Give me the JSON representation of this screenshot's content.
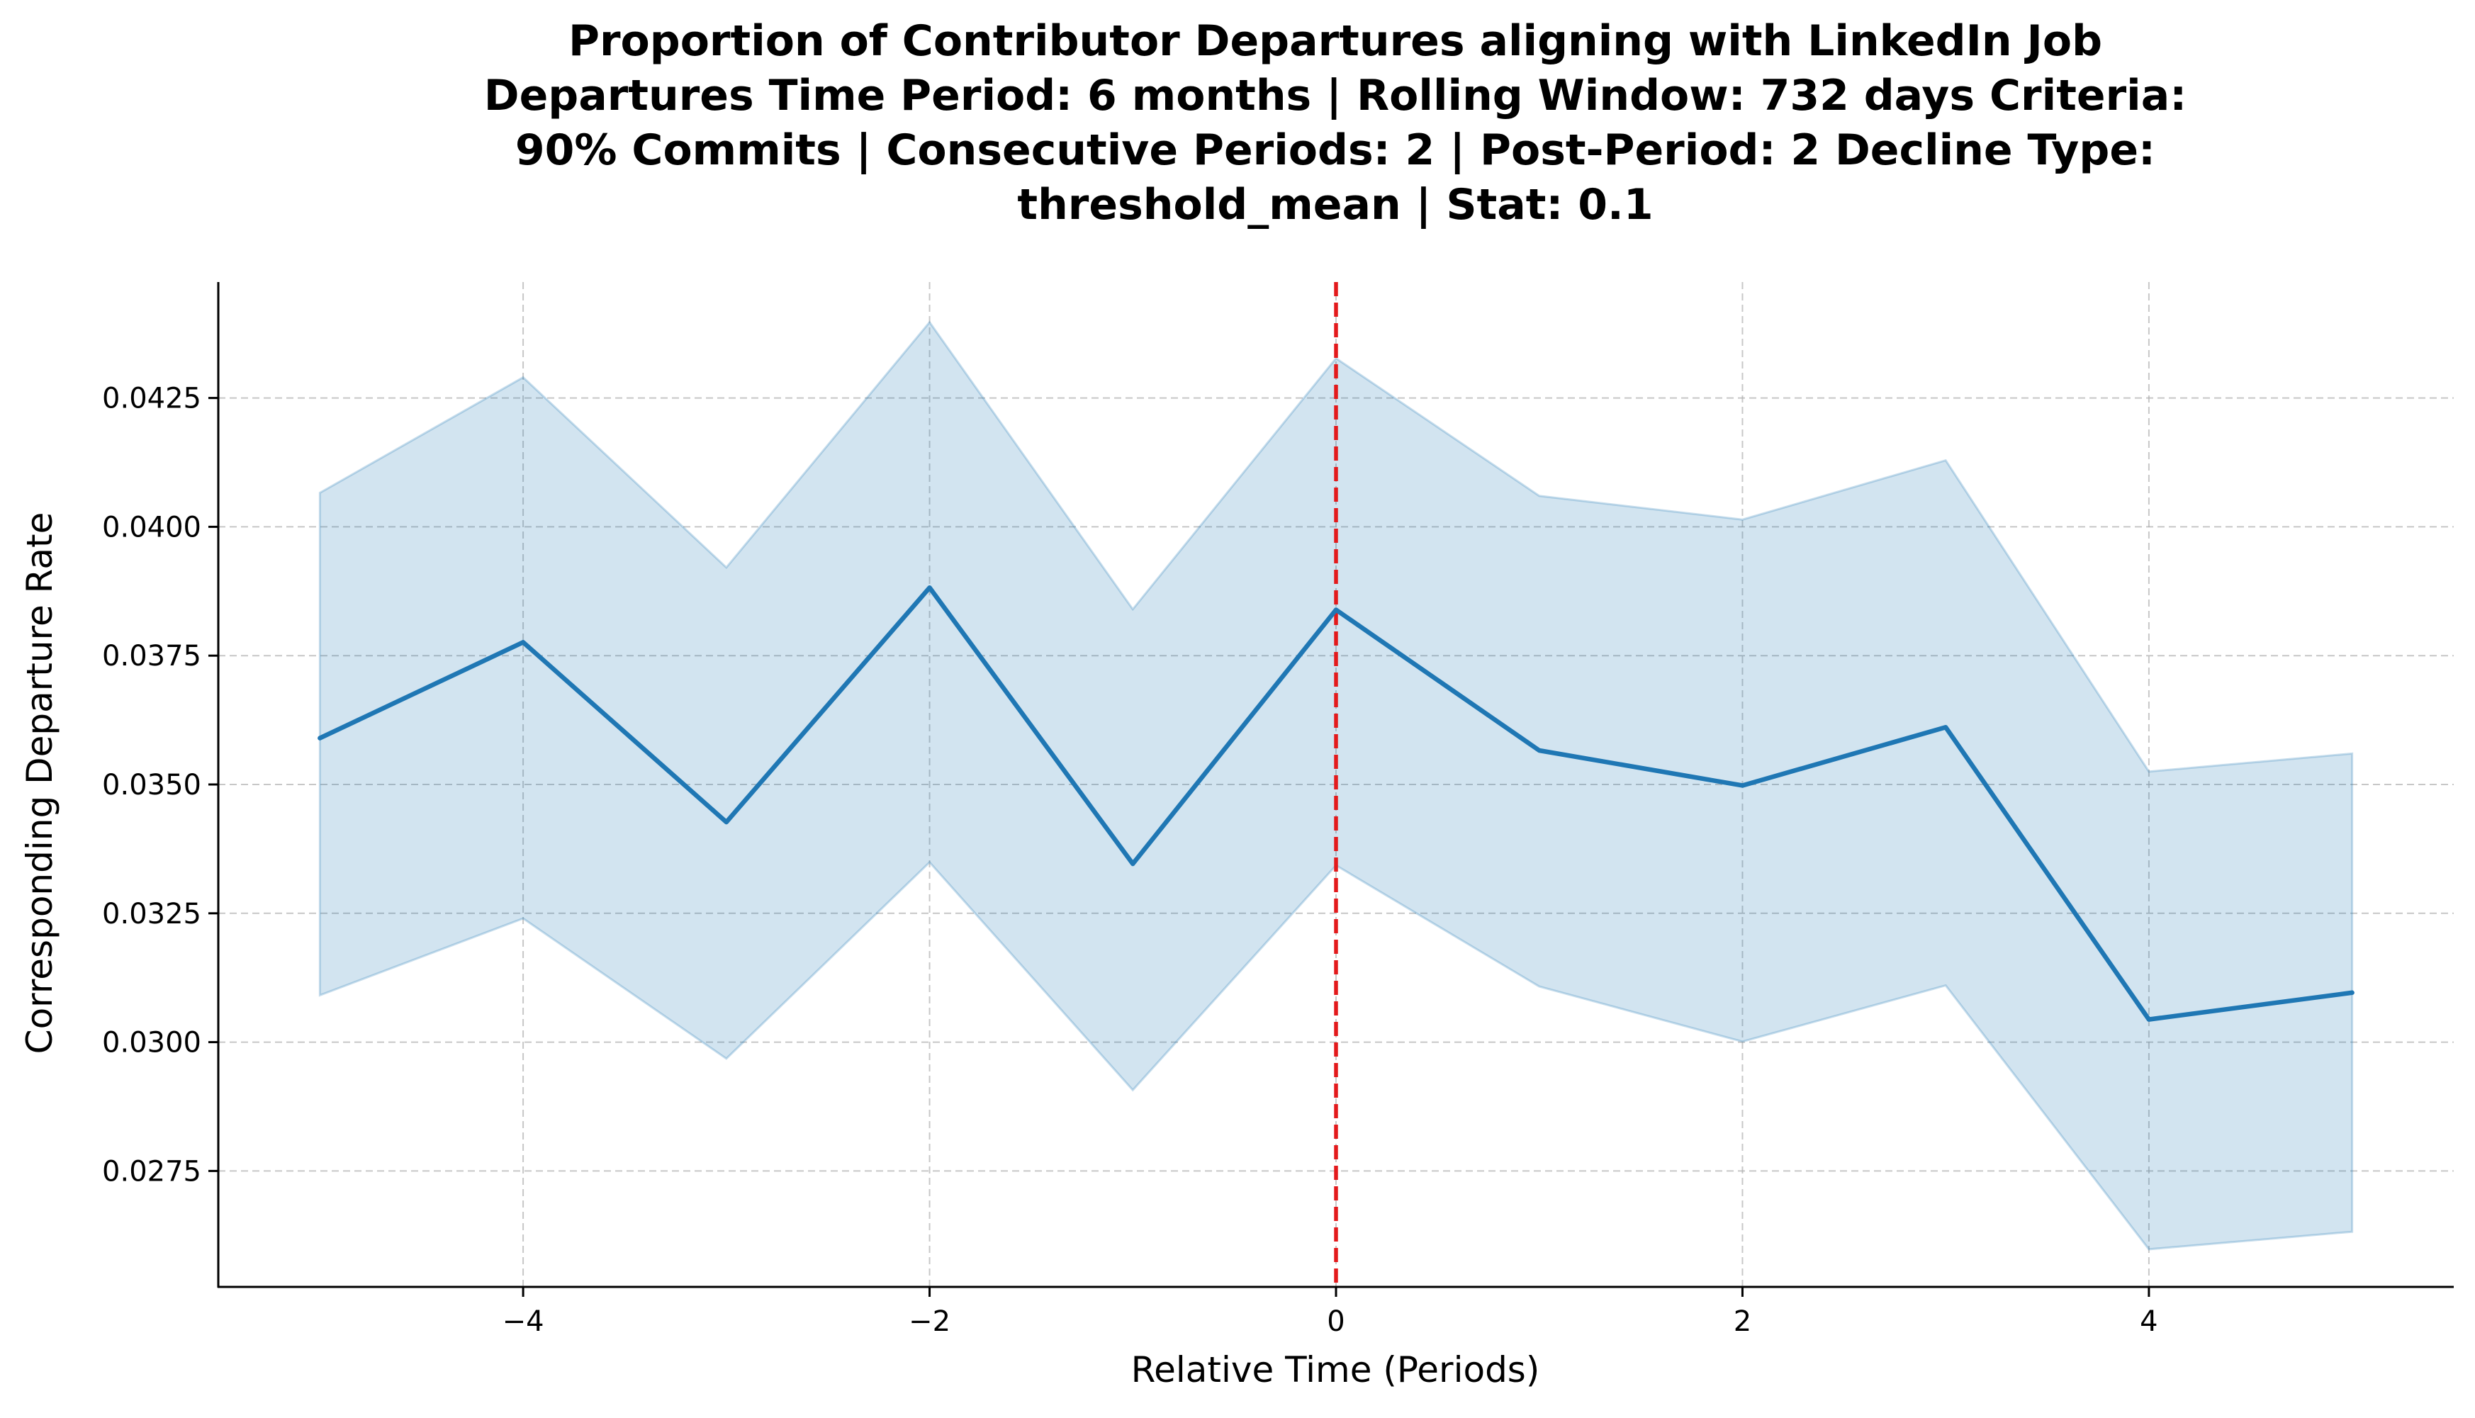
{
  "chart_data": {
    "type": "line",
    "title_lines": [
      "Proportion of Contributor Departures aligning with LinkedIn Job",
      "Departures Time Period: 6 months | Rolling Window: 732 days  Criteria:",
      "90% Commits | Consecutive Periods: 2 | Post-Period: 2 Decline Type:",
      "threshold_mean | Stat: 0.1"
    ],
    "xlabel": "Relative Time (Periods)",
    "ylabel": "Corresponding Departure Rate",
    "xlim": [
      -5.5,
      5.5
    ],
    "ylim": [
      0.02525,
      0.04475
    ],
    "xticks": [
      -4,
      -2,
      0,
      2,
      4
    ],
    "xtick_labels": [
      "−4",
      "−2",
      "0",
      "2",
      "4"
    ],
    "yticks": [
      0.0275,
      0.03,
      0.0325,
      0.035,
      0.0375,
      0.04,
      0.0425
    ],
    "ytick_labels": [
      "0.0275",
      "0.0300",
      "0.0325",
      "0.0350",
      "0.0375",
      "0.0400",
      "0.0425"
    ],
    "grid": true,
    "reference_line": {
      "x": 0,
      "color": "#e31a1c",
      "style": "dashed"
    },
    "series": [
      {
        "x": [
          -5,
          -4,
          -3,
          -2,
          -1,
          0,
          1,
          2,
          3,
          4,
          5
        ],
        "values": [
          0.0359,
          0.03776,
          0.03427,
          0.03882,
          0.03346,
          0.03839,
          0.03566,
          0.03498,
          0.03611,
          0.03044,
          0.03096
        ],
        "lower": [
          0.03091,
          0.0324,
          0.02968,
          0.03349,
          0.02907,
          0.03343,
          0.03108,
          0.03001,
          0.0311,
          0.02598,
          0.02632
        ],
        "upper": [
          0.04066,
          0.0429,
          0.03921,
          0.04397,
          0.0384,
          0.04327,
          0.0406,
          0.04014,
          0.04129,
          0.03525,
          0.0356
        ],
        "color": "#1f77b4"
      }
    ]
  }
}
